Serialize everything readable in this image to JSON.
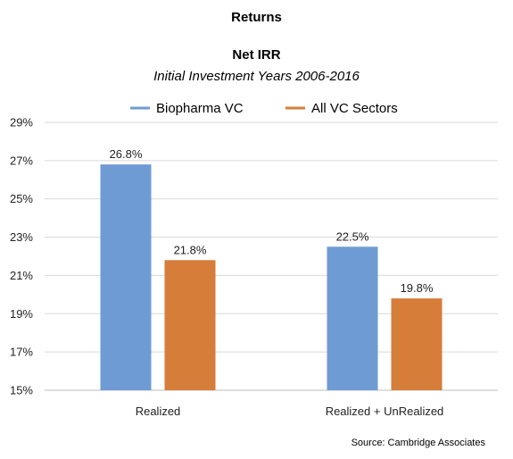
{
  "chart_data": {
    "type": "bar",
    "title": "Returns",
    "subtitle_main": "Net IRR",
    "subtitle_italic": "Initial Investment Years 2006-2016",
    "categories": [
      "Realized",
      "Realized + UnRealized"
    ],
    "series": [
      {
        "name": "Biopharma VC",
        "values": [
          26.8,
          22.5
        ],
        "labels": [
          "26.8%",
          "22.5%"
        ],
        "color": "#6f9bd4"
      },
      {
        "name": "All VC Sectors",
        "values": [
          21.8,
          19.8
        ],
        "labels": [
          "21.8%",
          "19.8%"
        ],
        "color": "#d67d3a"
      }
    ],
    "ylim": [
      15,
      29
    ],
    "yticks": [
      15,
      17,
      19,
      21,
      23,
      25,
      27,
      29
    ],
    "ytick_labels": [
      "15%",
      "17%",
      "19%",
      "21%",
      "23%",
      "25%",
      "27%",
      "29%"
    ],
    "grid": true,
    "legend": "top-center",
    "source": "Source: Cambridge Associates"
  }
}
